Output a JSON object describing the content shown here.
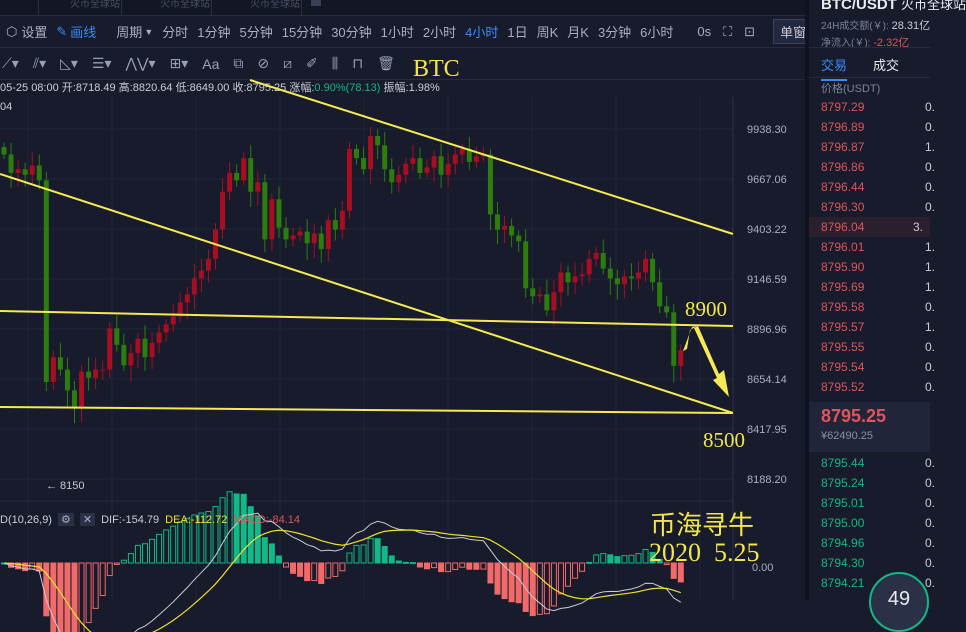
{
  "browser_tabs": [
    {
      "label": "火币全球站"
    },
    {
      "label": "火币全球站"
    },
    {
      "label": "火币全球站"
    }
  ],
  "toolbar": {
    "settings": "设置",
    "draw": "画线",
    "period": "周期",
    "intervals": [
      "分时",
      "1分钟",
      "5分钟",
      "15分钟",
      "30分钟",
      "1小时",
      "2小时",
      "4小时",
      "1日",
      "周K",
      "月K",
      "3分钟",
      "6小时"
    ],
    "active_interval": "4小时",
    "countdown": "0s",
    "window_mode": "单窗口"
  },
  "drawing_tools": {
    "text_tool": "Aa"
  },
  "info": {
    "time": "05-25 08:00",
    "open": "开:8718.49",
    "high": "高:8820.64",
    "low": "低:8649.00",
    "close": "收:8795.25",
    "change_label": "涨幅:",
    "change": "0.90%(78.13)",
    "amplitude": "振幅:1.98%",
    "ma_cut": "04"
  },
  "annotations": {
    "title": "BTC",
    "target_up": "8900",
    "target_down": "8500",
    "watermark": "币海寻牛",
    "date": "2020  5.25",
    "low_marker": "← 8150"
  },
  "price_axis": [
    "9938.30",
    "9667.06",
    "9403.22",
    "9146.59",
    "8896.96",
    "8654.14",
    "8417.95",
    "8188.20"
  ],
  "macd": {
    "label": "D(10,26,9)",
    "dif": "DIF:-154.79",
    "dea": "DEA:-112.72",
    "macd": "MACD:-84.14",
    "axis": "0.00"
  },
  "colors": {
    "up": "#a80e21",
    "down": "#2d7d0e",
    "line": "#f5ea55",
    "ask": "#e0555a",
    "bid": "#12b886",
    "accent": "#3d8af7"
  },
  "chart_data": {
    "type": "candlestick",
    "closes": [
      9800,
      9700,
      9720,
      9690,
      9740,
      9660,
      8640,
      8760,
      8700,
      8600,
      8520,
      8690,
      8660,
      8700,
      8700,
      8900,
      8820,
      8720,
      8780,
      8850,
      8760,
      8830,
      8880,
      8920,
      8960,
      9030,
      9070,
      9150,
      9190,
      9250,
      9400,
      9600,
      9700,
      9660,
      9780,
      9600,
      9650,
      9350,
      9560,
      9410,
      9350,
      9370,
      9390,
      9330,
      9380,
      9300,
      9450,
      9400,
      9500,
      9830,
      9780,
      9720,
      9900,
      9850,
      9720,
      9650,
      9690,
      9750,
      9780,
      9700,
      9730,
      9790,
      9690,
      9750,
      9800,
      9830,
      9760,
      9790,
      9800,
      9480,
      9400,
      9420,
      9370,
      9340,
      9100,
      9060,
      9070,
      8990,
      9080,
      9180,
      9130,
      9160,
      9170,
      9250,
      9280,
      9200,
      9150,
      9120,
      9160,
      9150,
      9180,
      9250,
      9130,
      9010,
      8980,
      8718,
      8795
    ]
  },
  "right_panel": {
    "pair": "BTC/USDT",
    "exchange": "火币全球站",
    "volume_label": "24H成交额(￥):",
    "volume": "28.31亿",
    "inflow_label": "净流入(￥):",
    "inflow": "-2.32亿",
    "tabs": [
      "交易",
      "成交"
    ],
    "col_price": "价格(USDT)",
    "asks": [
      {
        "p": "8797.29",
        "q": "0."
      },
      {
        "p": "8796.89",
        "q": "0."
      },
      {
        "p": "8796.87",
        "q": "1."
      },
      {
        "p": "8796.86",
        "q": "0."
      },
      {
        "p": "8796.44",
        "q": "0."
      },
      {
        "p": "8796.30",
        "q": "0."
      },
      {
        "p": "8796.04",
        "q": "3."
      },
      {
        "p": "8796.01",
        "q": "1."
      },
      {
        "p": "8795.90",
        "q": "1."
      },
      {
        "p": "8795.69",
        "q": "1."
      },
      {
        "p": "8795.58",
        "q": "0."
      },
      {
        "p": "8795.57",
        "q": "1."
      },
      {
        "p": "8795.55",
        "q": "0."
      },
      {
        "p": "8795.54",
        "q": "0."
      },
      {
        "p": "8795.52",
        "q": "0."
      }
    ],
    "last_price": "8795.25",
    "last_cny": "¥62490.25",
    "bids": [
      {
        "p": "8795.44",
        "q": "0."
      },
      {
        "p": "8795.24",
        "q": "0."
      },
      {
        "p": "8795.01",
        "q": "0."
      },
      {
        "p": "8795.00",
        "q": "0."
      },
      {
        "p": "8794.96",
        "q": "0."
      },
      {
        "p": "8794.30",
        "q": "0."
      },
      {
        "p": "8794.21",
        "q": "0."
      }
    ],
    "timer": "49"
  }
}
